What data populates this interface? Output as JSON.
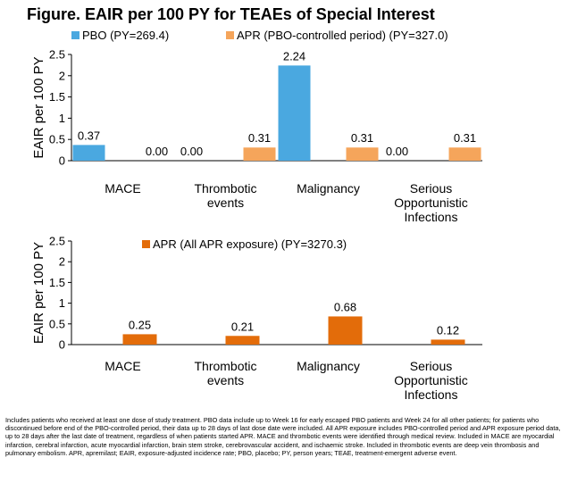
{
  "title": "Figure. EAIR per 100 PY for TEAEs of Special Interest",
  "footnote": "Includes patients who received at least one dose of study treatment. PBO data include up to Week 16 for early escaped PBO patients and Week 24 for all other patients; for patients who discontinued before end of the PBO-controlled period, their data up to 28 days of last dose date were included. All APR exposure includes PBO-controlled period and APR exposure period data, up to 28 days after the last date of treatment, regardless of when patients started APR. MACE and thrombotic events were identified through medical review. Included in MACE are myocardial infarction, cerebral infarction, acute myocardial infarction, brain stem stroke, cerebrovascular accident, and ischaemic stroke. Included in thrombotic events are deep vein thrombosis and pulmonary embolism. APR, apremilast; EAIR, exposure-adjusted incidence rate; PBO, placebo; PY, person years; TEAE, treatment-emergent adverse event.",
  "chart_data": [
    {
      "type": "bar",
      "ylabel": "EAIR per 100 PY",
      "ylim": [
        0,
        2.5
      ],
      "yticks": [
        "0",
        "0.5",
        "1",
        "1.5",
        "2",
        "2.5"
      ],
      "categories": [
        [
          "MACE"
        ],
        [
          "Thrombotic",
          "events"
        ],
        [
          "Malignancy"
        ],
        [
          "Serious",
          "Opportunistic",
          "Infections"
        ]
      ],
      "legend_position": "top",
      "series": [
        {
          "name": "PBO (PY=269.4)",
          "color": "#4aa8e0",
          "values": [
            0.37,
            0.0,
            2.24,
            0.0
          ],
          "labels": [
            "0.37",
            "0.00",
            "2.24",
            "0.00"
          ]
        },
        {
          "name": "APR (PBO-controlled period) (PY=327.0)",
          "color": "#f5a55b",
          "values": [
            0.0,
            0.31,
            0.31,
            0.31
          ],
          "labels": [
            "0.00",
            "0.31",
            "0.31",
            "0.31"
          ]
        }
      ]
    },
    {
      "type": "bar",
      "ylabel": "EAIR per 100 PY",
      "ylim": [
        0,
        2.5
      ],
      "yticks": [
        "0",
        "0.5",
        "1",
        "1.5",
        "2",
        "2.5"
      ],
      "categories": [
        [
          "MACE"
        ],
        [
          "Thrombotic",
          "events"
        ],
        [
          "Malignancy"
        ],
        [
          "Serious",
          "Opportunistic",
          "Infections"
        ]
      ],
      "legend_position": "top",
      "series": [
        {
          "name": "APR (All APR exposure) (PY=3270.3)",
          "color": "#e36c0a",
          "values": [
            0.25,
            0.21,
            0.68,
            0.12
          ],
          "labels": [
            "0.25",
            "0.21",
            "0.68",
            "0.12"
          ]
        }
      ]
    }
  ]
}
